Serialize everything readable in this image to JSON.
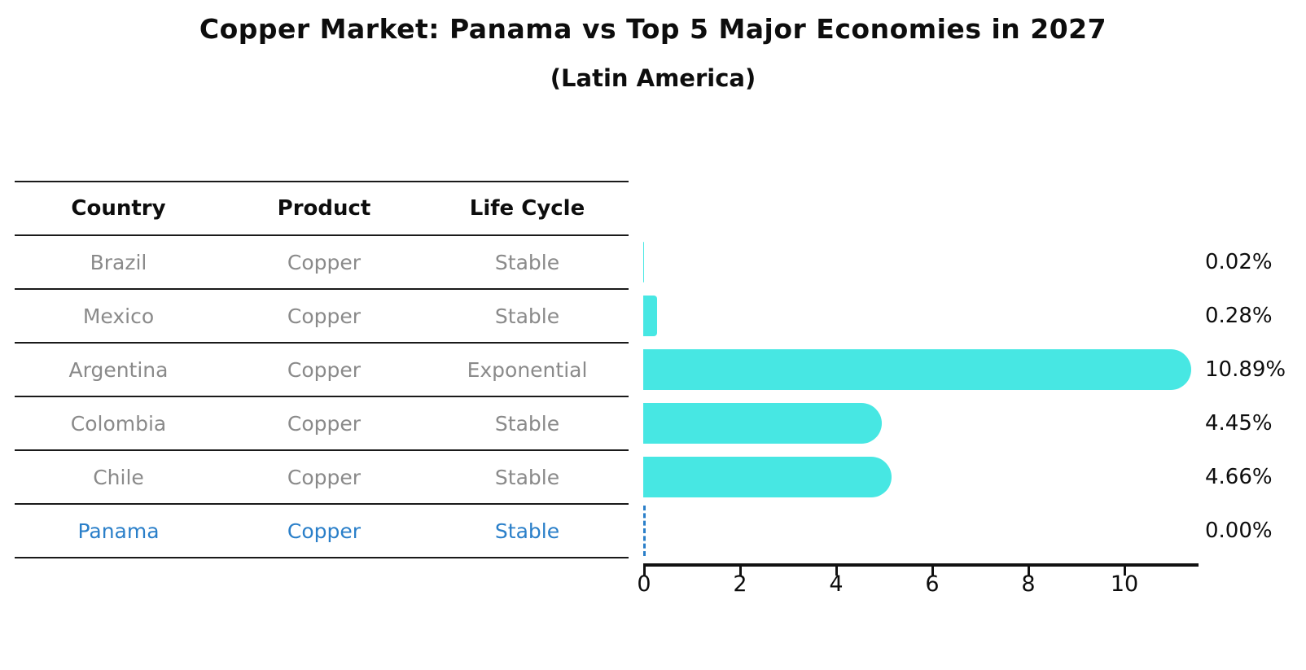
{
  "title": "Copper Market: Panama vs Top 5 Major Economies in 2027",
  "subtitle": "(Latin America)",
  "table": {
    "headers": [
      "Country",
      "Product",
      "Life Cycle"
    ],
    "rows": [
      {
        "country": "Brazil",
        "product": "Copper",
        "life_cycle": "Stable",
        "highlight": false
      },
      {
        "country": "Mexico",
        "product": "Copper",
        "life_cycle": "Stable",
        "highlight": false
      },
      {
        "country": "Argentina",
        "product": "Copper",
        "life_cycle": "Exponential",
        "highlight": false
      },
      {
        "country": "Colombia",
        "product": "Copper",
        "life_cycle": "Stable",
        "highlight": false
      },
      {
        "country": "Chile",
        "product": "Copper",
        "life_cycle": "Stable",
        "highlight": false
      },
      {
        "country": "Panama",
        "product": "Copper",
        "life_cycle": "Stable",
        "highlight": true
      }
    ]
  },
  "chart_data": {
    "type": "bar",
    "orientation": "horizontal",
    "categories": [
      "Brazil",
      "Mexico",
      "Argentina",
      "Colombia",
      "Chile",
      "Panama"
    ],
    "values": [
      0.02,
      0.28,
      10.89,
      4.45,
      4.66,
      0.0
    ],
    "value_labels": [
      "0.02%",
      "0.28%",
      "10.89%",
      "4.45%",
      "4.66%",
      "0.00%"
    ],
    "title": "Copper Market: Panama vs Top 5 Major Economies in 2027",
    "subtitle": "(Latin America)",
    "xlabel": "",
    "ylabel": "",
    "x_ticks": [
      0,
      2,
      4,
      6,
      8,
      10
    ],
    "xlim": [
      0,
      11.5
    ],
    "grid": false,
    "legend": false,
    "bar_color": "#47e7e3",
    "highlight_color": "#2a7fc9",
    "highlight_index": 5,
    "zero_marker": "dashed-line"
  }
}
